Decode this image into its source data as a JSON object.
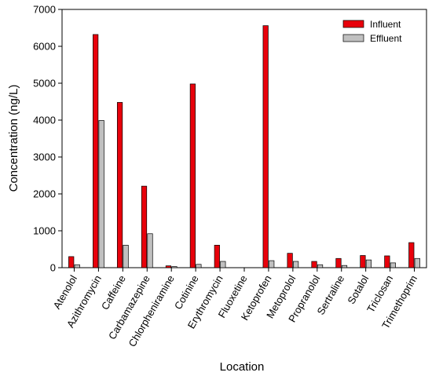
{
  "chart_data": {
    "type": "bar",
    "xlabel": "Location",
    "ylabel": "Concentration (ng/L)",
    "ylim": [
      0,
      7000
    ],
    "yticks": [
      0,
      1000,
      2000,
      3000,
      4000,
      5000,
      6000,
      7000
    ],
    "grid": false,
    "legend_position": "top-right",
    "categories": [
      "Atenolol",
      "Azithromycin",
      "Caffeine",
      "Carbamazepine",
      "Chlorpheniramine",
      "Cotinine",
      "Erythromycin",
      "Fluoxetine",
      "Ketoprofen",
      "Metoprolol",
      "Propranolol",
      "Sertraline",
      "Sotalol",
      "Triclosan",
      "Trimethoprim"
    ],
    "series": [
      {
        "name": "Influent",
        "color": "#e8000b",
        "values": [
          300,
          6320,
          4480,
          2210,
          50,
          4980,
          610,
          0,
          6560,
          390,
          170,
          250,
          330,
          320,
          680
        ]
      },
      {
        "name": "Effluent",
        "color": "#c0c0c0",
        "values": [
          80,
          3990,
          610,
          920,
          30,
          90,
          170,
          0,
          190,
          170,
          80,
          60,
          210,
          130,
          250
        ]
      }
    ]
  }
}
